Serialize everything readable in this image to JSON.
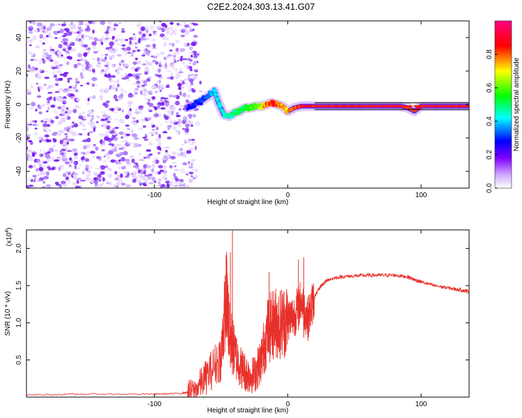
{
  "title": "C2E2.2024.303.13.41.G07",
  "chart_data": [
    {
      "type": "heatmap",
      "name": "spectrogram",
      "xlabel": "Height of straight line (km)",
      "ylabel": "Frequency (Hz)",
      "xlim": [
        -196,
        136
      ],
      "ylim": [
        -50,
        50
      ],
      "xticks": [
        -100,
        0,
        100
      ],
      "xtick_labels": [
        "-100",
        "0",
        "100"
      ],
      "yticks": [
        -40,
        -20,
        0,
        20,
        40
      ],
      "ytick_labels": [
        "-40",
        "-20",
        "0",
        "20",
        "40"
      ],
      "colorbar": {
        "label": "Normalized spectral amplitude",
        "range": [
          0,
          1
        ],
        "ticks": [
          0.0,
          0.2,
          0.4,
          0.6,
          0.8
        ],
        "tick_labels": [
          "0.0",
          "0.2",
          "0.4",
          "0.6",
          "0.8"
        ],
        "colors": [
          "#ffffff",
          "#8000ff",
          "#0000ff",
          "#00ffff",
          "#00ff00",
          "#ffff00",
          "#ff0000",
          "#ff0080"
        ]
      },
      "noise_region_x": [
        -196,
        -68
      ],
      "signal_track": {
        "x": [
          -75,
          -65,
          -58,
          -55,
          -52,
          -48,
          -44,
          -40,
          -36,
          -32,
          -28,
          -24,
          -20,
          -16,
          -12,
          -8,
          -4,
          0,
          5,
          10,
          15,
          20,
          30,
          40,
          50,
          60,
          70,
          80,
          85,
          90,
          95,
          100,
          110,
          120,
          136
        ],
        "freq": [
          -2,
          2,
          6,
          8,
          1,
          -6,
          -7,
          -5,
          -4,
          -2,
          -2,
          -1,
          -1,
          0,
          1,
          0,
          -1,
          -4,
          -2,
          -1,
          -1,
          -1,
          -1,
          -1,
          -1,
          -1,
          -1,
          -1,
          -1,
          -2,
          -4,
          -1,
          -1,
          -1,
          -1
        ],
        "amplitude": [
          0.25,
          0.3,
          0.35,
          0.4,
          0.45,
          0.45,
          0.5,
          0.5,
          0.55,
          0.55,
          0.6,
          0.6,
          0.7,
          0.8,
          0.9,
          0.85,
          0.8,
          0.75,
          0.85,
          0.9,
          0.92,
          0.95,
          0.95,
          0.95,
          0.95,
          0.95,
          0.95,
          0.95,
          0.95,
          0.9,
          0.9,
          0.95,
          0.95,
          0.95,
          0.95
        ]
      }
    },
    {
      "type": "line",
      "name": "snr",
      "xlabel": "Height of straight line (km)",
      "ylabel": "SNR (10 * v/v)",
      "y_multiplier": "(x10",
      "y_multiplier_exp": "4",
      "y_multiplier_close": ")",
      "xlim": [
        -196,
        136
      ],
      "ylim": [
        0,
        2.25
      ],
      "xticks": [
        -100,
        0,
        100
      ],
      "xtick_labels": [
        "-100",
        "0",
        "100"
      ],
      "yticks": [
        0.5,
        1.0,
        1.5,
        2.0
      ],
      "ytick_labels": [
        "0.5",
        "1.0",
        "1.5",
        "2.0"
      ],
      "color": "#e8302a",
      "series": [
        {
          "name": "SNR",
          "x": [
            -196,
            -150,
            -100,
            -80,
            -70,
            -60,
            -50,
            -46,
            -44,
            -40,
            -35,
            -30,
            -25,
            -20,
            -15,
            -10,
            -5,
            0,
            5,
            10,
            15,
            20,
            25,
            30,
            40,
            50,
            60,
            70,
            80,
            90,
            95,
            100,
            110,
            120,
            130,
            136
          ],
          "values": [
            0.03,
            0.04,
            0.04,
            0.05,
            0.08,
            0.3,
            0.55,
            1.4,
            0.9,
            0.6,
            0.4,
            0.3,
            0.3,
            0.5,
            0.9,
            1.0,
            1.0,
            1.05,
            1.1,
            1.3,
            1.05,
            1.35,
            1.5,
            1.58,
            1.62,
            1.63,
            1.64,
            1.64,
            1.64,
            1.62,
            1.58,
            1.55,
            1.5,
            1.47,
            1.44,
            1.42
          ]
        }
      ]
    }
  ]
}
